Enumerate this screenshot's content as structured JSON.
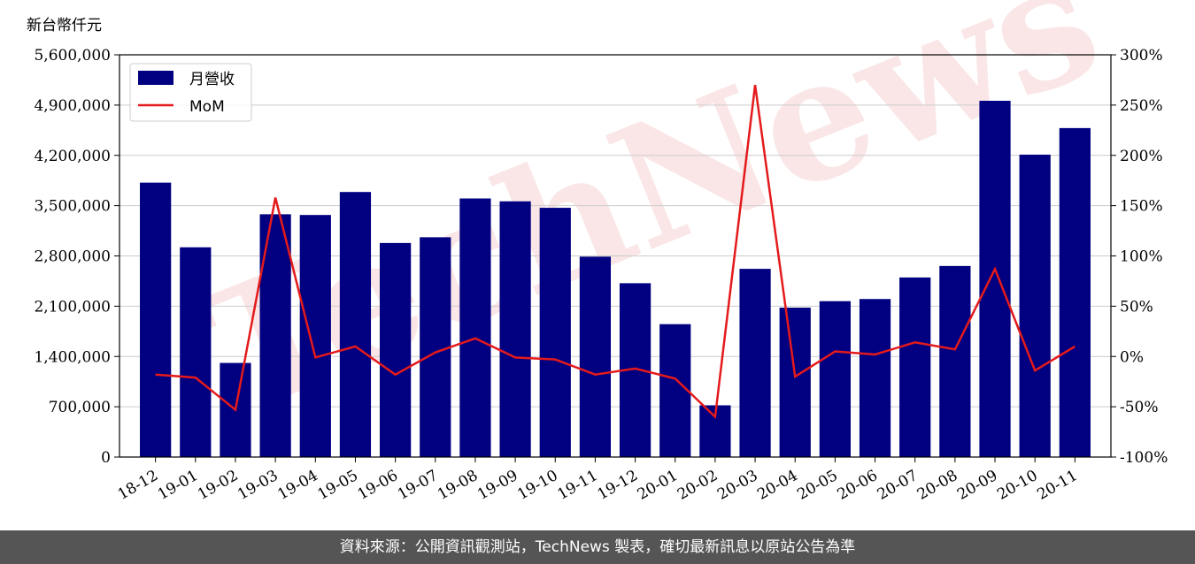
{
  "footer": {
    "source_text": "資料來源：公開資訊觀測站，TechNews 製表，確切最新訊息以原站公告為準"
  },
  "watermark": {
    "text": "TechNews"
  },
  "chart_data": {
    "type": "bar+line",
    "unit_label": "新台幣仟元",
    "categories": [
      "18-12",
      "19-01",
      "19-02",
      "19-03",
      "19-04",
      "19-05",
      "19-06",
      "19-07",
      "19-08",
      "19-09",
      "19-10",
      "19-11",
      "19-12",
      "20-01",
      "20-02",
      "20-03",
      "20-04",
      "20-05",
      "20-06",
      "20-07",
      "20-08",
      "20-09",
      "20-10",
      "20-11"
    ],
    "series": [
      {
        "name": "月營收",
        "type": "bar",
        "axis": "left",
        "color": "#000080",
        "values": [
          3820000,
          2920000,
          1310000,
          3380000,
          3370000,
          3690000,
          2980000,
          3060000,
          3600000,
          3560000,
          3470000,
          2790000,
          2420000,
          1850000,
          720000,
          2620000,
          2080000,
          2170000,
          2200000,
          2500000,
          2660000,
          4960000,
          4210000,
          4580000
        ]
      },
      {
        "name": "MoM",
        "type": "line",
        "axis": "right",
        "color": "#e41a1c",
        "values": [
          -18,
          -21,
          -53,
          158,
          -1,
          10,
          -18,
          4,
          18,
          -1,
          -3,
          -18,
          -12,
          -22,
          -60,
          270,
          -20,
          5,
          2,
          14,
          7,
          87,
          -14,
          10
        ]
      }
    ],
    "y_left": {
      "ylim": [
        0,
        5600000
      ],
      "ticks": [
        0,
        700000,
        1400000,
        2100000,
        2800000,
        3500000,
        4200000,
        4900000,
        5600000
      ],
      "tick_labels": [
        "0",
        "700,000",
        "1,400,000",
        "2,100,000",
        "2,800,000",
        "3,500,000",
        "4,200,000",
        "4,900,000",
        "5,600,000"
      ]
    },
    "y_right": {
      "ylim": [
        -100,
        300
      ],
      "ticks": [
        -100,
        -50,
        0,
        50,
        100,
        150,
        200,
        250,
        300
      ],
      "tick_labels": [
        "-100%",
        "-50%",
        "0%",
        "50%",
        "100%",
        "150%",
        "200%",
        "250%",
        "300%"
      ]
    },
    "grid": "horizontal",
    "legend": {
      "placement": "top-left",
      "entries": [
        "月營收",
        "MoM"
      ]
    }
  }
}
